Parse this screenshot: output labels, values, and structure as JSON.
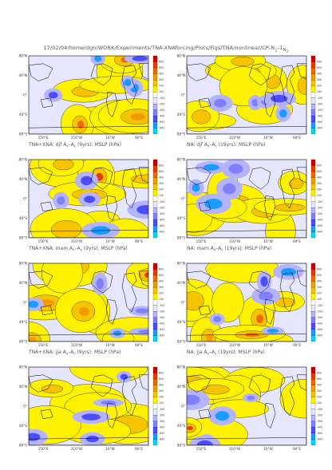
{
  "header": {
    "path": "17/02/04/home/dgn/WORK/Experiments/TNA-XNAforcing/Plots/Figs/TNA/nonlinear/CP-N",
    "suffix_sub": "1",
    "suffix_mid": "-1",
    "suffix_end": "N",
    "suffix_end_sub": "2"
  },
  "lat_ticks": [
    "80°N",
    "40°N",
    "0°",
    "40°S",
    "80°S"
  ],
  "lon_ticks": [
    "150°E",
    "110°W",
    "10°W",
    "90°E"
  ],
  "colorbar_ticks": [
    "800",
    "600",
    "400",
    "300",
    "200",
    "100",
    "-100",
    "-200",
    "-300",
    "-400",
    "-600",
    "-800"
  ],
  "colors": {
    "pos": [
      "#fff200",
      "#f7c400",
      "#f39a00",
      "#ee6a00",
      "#e83b00",
      "#c80000"
    ],
    "neg": [
      "#e6e6ff",
      "#b3b3ff",
      "#8080ff",
      "#4d4dff",
      "#1a9bff",
      "#00d8ff"
    ],
    "land": "#000000"
  },
  "panels": [
    {
      "title": "TNA+XNA: djf A",
      "sub": "x",
      "mid": "–A",
      "sub2": "c",
      "rest": " (9yrs): MSLP (hPa)"
    },
    {
      "title": "NA: djf A",
      "sub": "x",
      "mid": "–A",
      "sub2": "c",
      "rest": " (19yrs): MSLP (hPa)"
    },
    {
      "title": "TNA+XNA: mam A",
      "sub": "x",
      "mid": "–A",
      "sub2": "c",
      "rest": " (9yrs): MSLP (hPa)"
    },
    {
      "title": "NA: mam A",
      "sub": "x",
      "mid": "–A",
      "sub2": "c",
      "rest": " (19yrs): MSLP (hPa)"
    },
    {
      "title": "TNA+XNA: jja A",
      "sub": "x",
      "mid": "–A",
      "sub2": "c",
      "rest": " (9yrs): MSLP (hPa)"
    },
    {
      "title": "NA: jja A",
      "sub": "x",
      "mid": "–A",
      "sub2": "c",
      "rest": " (19yrs): MSLP (hPa)"
    },
    {
      "title": "",
      "sub": "",
      "mid": "",
      "sub2": "",
      "rest": ""
    },
    {
      "title": "",
      "sub": "",
      "mid": "",
      "sub2": "",
      "rest": ""
    }
  ]
}
